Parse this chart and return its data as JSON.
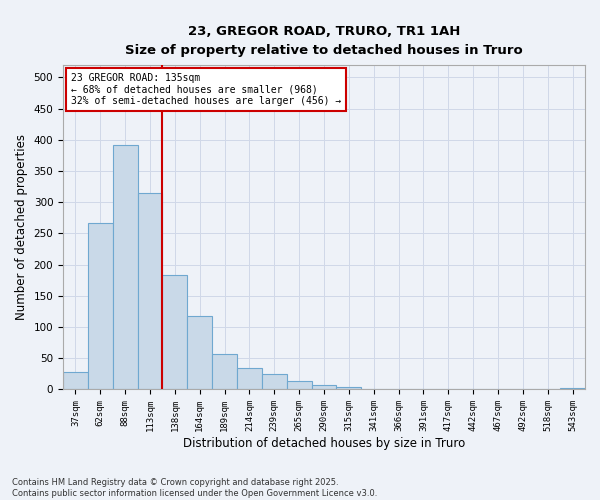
{
  "title_line1": "23, GREGOR ROAD, TRURO, TR1 1AH",
  "title_line2": "Size of property relative to detached houses in Truro",
  "xlabel": "Distribution of detached houses by size in Truro",
  "ylabel": "Number of detached properties",
  "categories": [
    "37sqm",
    "62sqm",
    "88sqm",
    "113sqm",
    "138sqm",
    "164sqm",
    "189sqm",
    "214sqm",
    "239sqm",
    "265sqm",
    "290sqm",
    "315sqm",
    "341sqm",
    "366sqm",
    "391sqm",
    "417sqm",
    "442sqm",
    "467sqm",
    "492sqm",
    "518sqm",
    "543sqm"
  ],
  "values": [
    28,
    267,
    392,
    315,
    183,
    117,
    57,
    34,
    24,
    13,
    7,
    4,
    1,
    1,
    1,
    0,
    0,
    0,
    0,
    0,
    3
  ],
  "bar_color": "#c9d9e8",
  "bar_edge_color": "#6fa8d0",
  "bar_linewidth": 0.8,
  "grid_color": "#d0d8e8",
  "background_color": "#eef2f8",
  "property_line_x": 3.5,
  "annotation_text_line1": "23 GREGOR ROAD: 135sqm",
  "annotation_text_line2": "← 68% of detached houses are smaller (968)",
  "annotation_text_line3": "32% of semi-detached houses are larger (456) →",
  "annotation_box_color": "#ffffff",
  "annotation_box_edge_color": "#cc0000",
  "property_line_color": "#cc0000",
  "ylim": [
    0,
    520
  ],
  "yticks": [
    0,
    50,
    100,
    150,
    200,
    250,
    300,
    350,
    400,
    450,
    500
  ],
  "footer_line1": "Contains HM Land Registry data © Crown copyright and database right 2025.",
  "footer_line2": "Contains public sector information licensed under the Open Government Licence v3.0."
}
